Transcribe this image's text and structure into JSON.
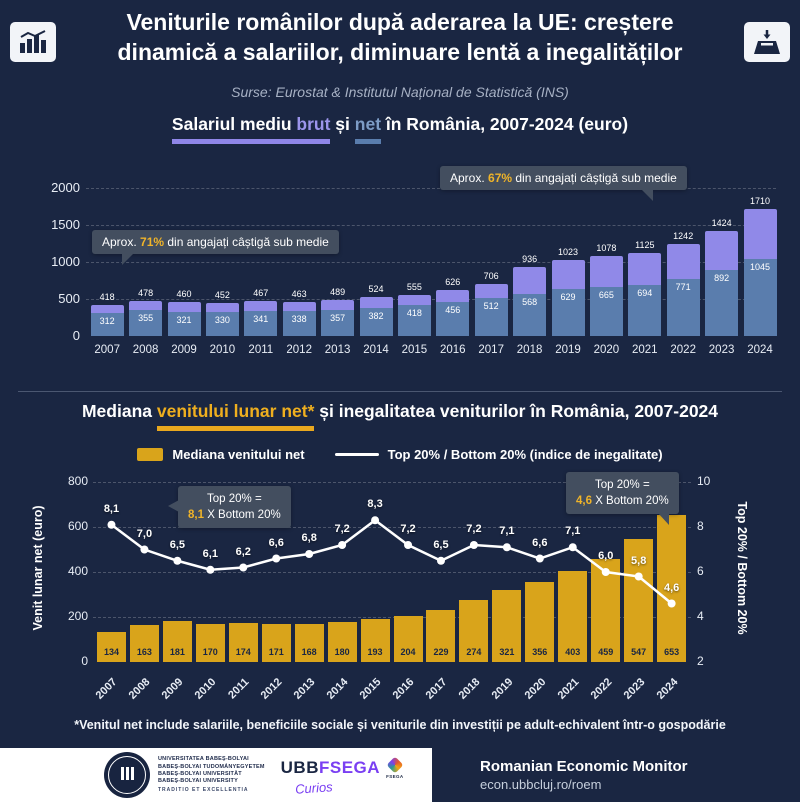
{
  "header": {
    "title": "Veniturile românilor după aderarea la UE: creștere dinamică a salariilor, diminuare lentă a inegalităților",
    "subtitle": "Surse: Eurostat & Institutul Național de Statistică (INS)"
  },
  "icons": {
    "top_left": "bar-chart-icon",
    "top_right": "ballot-box-icon"
  },
  "chart_data": [
    {
      "type": "bar",
      "title_pre": "Salariul mediu ",
      "title_brut": "brut",
      "title_and": " și ",
      "title_net": "net",
      "title_post": " în România, 2007-2024 (euro)",
      "categories": [
        2007,
        2008,
        2009,
        2010,
        2011,
        2012,
        2013,
        2014,
        2015,
        2016,
        2017,
        2018,
        2019,
        2020,
        2021,
        2022,
        2023,
        2024
      ],
      "series": [
        {
          "name": "Salariul mediu brut",
          "color": "#9089E8",
          "values": [
            418,
            478,
            460,
            452,
            467,
            463,
            489,
            524,
            555,
            626,
            706,
            936,
            1023,
            1078,
            1125,
            1242,
            1424,
            1710
          ]
        },
        {
          "name": "Salariul mediu net",
          "color": "#5A7DAD",
          "values": [
            312,
            355,
            321,
            330,
            341,
            338,
            357,
            382,
            418,
            456,
            512,
            568,
            629,
            665,
            694,
            771,
            892,
            1045
          ]
        }
      ],
      "ylim": [
        0,
        2000
      ],
      "yticks": [
        0,
        500,
        1000,
        1500,
        2000
      ],
      "grid": "dashed-horizontal",
      "annotations": [
        {
          "pre": "Aprox. ",
          "value": "71%",
          "post": " din angajați câștigă sub medie"
        },
        {
          "pre": "Aprox. ",
          "value": "67%",
          "post": " din angajați câștigă sub medie"
        }
      ]
    },
    {
      "type": "bar+line",
      "title_pre": "Mediana ",
      "title_gold": "venitului lunar net*",
      "title_post": " și inegalitatea veniturilor în România, 2007-2024",
      "legend": [
        {
          "label": "Mediana venitului net",
          "color": "#D9A41B",
          "marker": "square"
        },
        {
          "label": "Top 20% / Bottom 20% (indice de inegalitate)",
          "color": "#FFFFFF",
          "marker": "line"
        }
      ],
      "categories": [
        2007,
        2008,
        2009,
        2010,
        2011,
        2012,
        2013,
        2014,
        2015,
        2016,
        2017,
        2018,
        2019,
        2020,
        2021,
        2022,
        2023,
        2024
      ],
      "bar_series": {
        "name": "Mediana venitului net",
        "color": "#D9A41B",
        "values": [
          134,
          163,
          181,
          170,
          174,
          171,
          168,
          180,
          193,
          204,
          229,
          274,
          321,
          356,
          403,
          459,
          547,
          653
        ]
      },
      "line_series": {
        "name": "Top 20% / Bottom 20%",
        "color": "#FFFFFF",
        "values": [
          8.1,
          7.0,
          6.5,
          6.1,
          6.2,
          6.6,
          6.8,
          7.2,
          8.3,
          7.2,
          6.5,
          7.2,
          7.1,
          6.6,
          7.1,
          6.0,
          5.8,
          4.6
        ],
        "labels": [
          "8,1",
          "7,0",
          "6,5",
          "6,1",
          "6,2",
          "6,6",
          "6,8",
          "7,2",
          "8,3",
          "7,2",
          "6,5",
          "7,2",
          "7,1",
          "6,6",
          "7,1",
          "6,0",
          "5,8",
          "4,6"
        ]
      },
      "ylabel_left": "Venit lunar net (euro)",
      "ylabel_right": "Top 20% / Bottom 20%",
      "yticks_left": [
        0,
        200,
        400,
        600,
        800
      ],
      "yticks_right": [
        2,
        4,
        6,
        8,
        10
      ],
      "ylim_left": [
        0,
        800
      ],
      "ylim_right": [
        2,
        10
      ],
      "annotations": [
        {
          "line1": "Top 20% =",
          "value": "8,1",
          "post": " X Bottom 20%"
        },
        {
          "line1": "Top 20% =",
          "value": "4,6",
          "post": " X Bottom 20%"
        }
      ]
    }
  ],
  "footnote": "*Venitul net include salariile, beneficiile sociale și veniturile din investiții pe adult-echivalent într-o gospodărie",
  "footer": {
    "ubb_lines": [
      "UNIVERSITATEA BABEŞ-BOLYAI",
      "BABEŞ-BOLYAI TUDOMÁNYEGYETEM",
      "BABEŞ-BOLYAI UNIVERSITÄT",
      "BABEŞ-BOLYAI UNIVERSITY"
    ],
    "ubb_motto": "TRADITIO ET EXCELLENTIA",
    "fsega_ubb": "UBB",
    "fsega_fsega": "FSEGA",
    "fsega_emblem_label": "FSEGA",
    "fsega_script": "Curios",
    "monitor_title": "Romanian Economic Monitor",
    "monitor_url": "econ.ubbcluj.ro/roem"
  }
}
